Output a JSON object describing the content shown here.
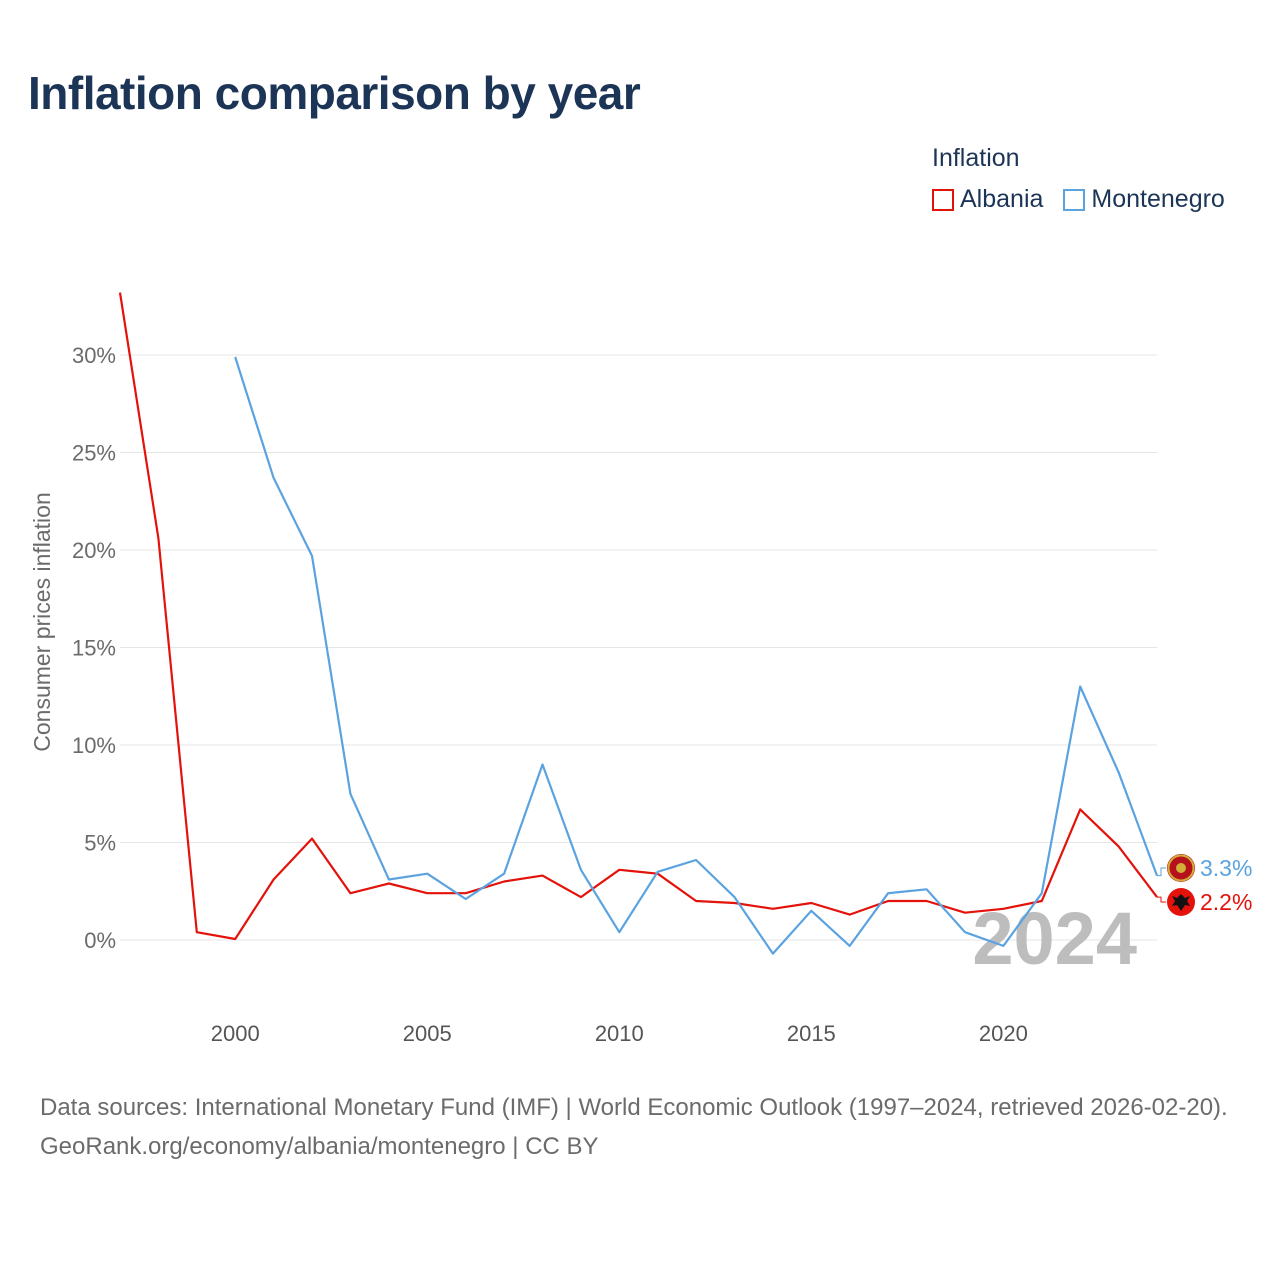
{
  "header": {
    "title": "Inflation comparison by year"
  },
  "legend": {
    "title": "Inflation",
    "items": [
      {
        "label": "Albania",
        "color": "#e3120b"
      },
      {
        "label": "Montenegro",
        "color": "#5ba3e0"
      }
    ]
  },
  "chart_data": {
    "type": "line",
    "title": "Inflation comparison by year",
    "xlabel": "",
    "ylabel": "Consumer prices inflation",
    "xlim": [
      1997,
      2024
    ],
    "ylim": [
      0,
      30
    ],
    "x_ticks": [
      2000,
      2005,
      2010,
      2015,
      2020
    ],
    "y_ticks": [
      0,
      5,
      10,
      15,
      20,
      25,
      30
    ],
    "y_tick_labels": [
      "0%",
      "5%",
      "10%",
      "15%",
      "20%",
      "25%",
      "30%"
    ],
    "grid": true,
    "year_watermark": "2024",
    "series": [
      {
        "name": "Albania",
        "color": "#e3120b",
        "end_label": "2.2%",
        "x": [
          1997,
          1998,
          1999,
          2000,
          2001,
          2002,
          2003,
          2004,
          2005,
          2006,
          2007,
          2008,
          2009,
          2010,
          2011,
          2012,
          2013,
          2014,
          2015,
          2016,
          2017,
          2018,
          2019,
          2020,
          2021,
          2022,
          2023,
          2024
        ],
        "values": [
          33.2,
          20.6,
          0.4,
          0.05,
          3.1,
          5.2,
          2.4,
          2.9,
          2.4,
          2.4,
          3.0,
          3.3,
          2.2,
          3.6,
          3.4,
          2.0,
          1.9,
          1.6,
          1.9,
          1.3,
          2.0,
          2.0,
          1.4,
          1.6,
          2.0,
          6.7,
          4.8,
          2.2
        ]
      },
      {
        "name": "Montenegro",
        "color": "#5ba3e0",
        "end_label": "3.3%",
        "x": [
          2000,
          2001,
          2002,
          2003,
          2004,
          2005,
          2006,
          2007,
          2008,
          2009,
          2010,
          2011,
          2012,
          2013,
          2014,
          2015,
          2016,
          2017,
          2018,
          2019,
          2020,
          2021,
          2022,
          2023,
          2024
        ],
        "values": [
          29.9,
          23.7,
          19.7,
          7.5,
          3.1,
          3.4,
          2.1,
          3.4,
          9.0,
          3.6,
          0.4,
          3.5,
          4.1,
          2.2,
          -0.7,
          1.5,
          -0.3,
          2.4,
          2.6,
          0.4,
          -0.3,
          2.4,
          13.0,
          8.6,
          3.3
        ]
      }
    ]
  },
  "footer": {
    "source_line": "Data sources: International Monetary Fund (IMF) | World Economic Outlook (1997–2024, retrieved 2026-02-20).",
    "credit_line": "GeoRank.org/economy/albania/montenegro | CC BY"
  }
}
